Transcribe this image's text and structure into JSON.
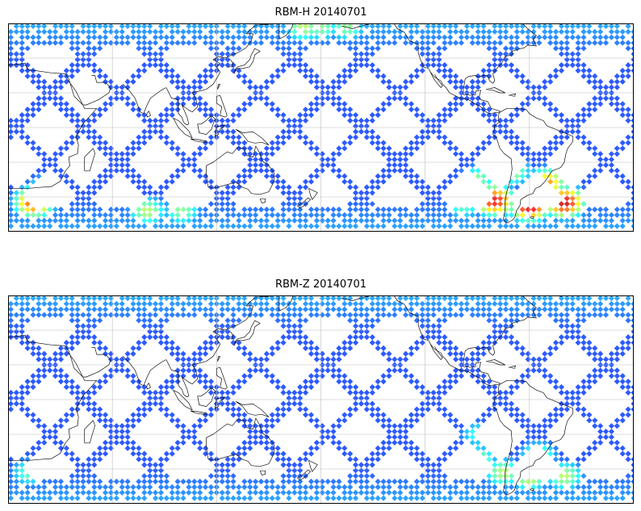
{
  "panels": [
    {
      "title": "RBM-H 20140701",
      "hotspots": [
        {
          "lon": 15,
          "lat": -43,
          "level": 0.85
        },
        {
          "lon": 22,
          "lat": -36,
          "level": 0.55
        },
        {
          "lon": 170,
          "lat": 58,
          "level": 0.55
        },
        {
          "lon": 180,
          "lat": 58,
          "level": 0.5
        },
        {
          "lon": 195,
          "lat": 58,
          "level": 0.5
        },
        {
          "lon": 80,
          "lat": -48,
          "level": 0.55
        },
        {
          "lon": 100,
          "lat": -48,
          "level": 0.5
        },
        {
          "lon": 280,
          "lat": -42,
          "level": 0.9
        },
        {
          "lon": 300,
          "lat": -45,
          "level": 0.95
        },
        {
          "lon": 320,
          "lat": -43,
          "level": 0.95
        },
        {
          "lon": 310,
          "lat": -32,
          "level": 0.75
        },
        {
          "lon": 290,
          "lat": -25,
          "level": 0.55
        },
        {
          "lon": 270,
          "lat": -30,
          "level": 0.5
        },
        {
          "lon": 262,
          "lat": -45,
          "level": 0.45
        }
      ]
    },
    {
      "title": "RBM-Z 20140701",
      "hotspots": [
        {
          "lon": 12,
          "lat": -42,
          "level": 0.45
        },
        {
          "lon": 270,
          "lat": -35,
          "level": 0.55
        },
        {
          "lon": 285,
          "lat": -42,
          "level": 0.55
        },
        {
          "lon": 300,
          "lat": -44,
          "level": 0.6
        },
        {
          "lon": 320,
          "lat": -44,
          "level": 0.55
        },
        {
          "lon": 305,
          "lat": -32,
          "level": 0.5
        },
        {
          "lon": 270,
          "lat": -20,
          "level": 0.4
        }
      ]
    }
  ]
}
